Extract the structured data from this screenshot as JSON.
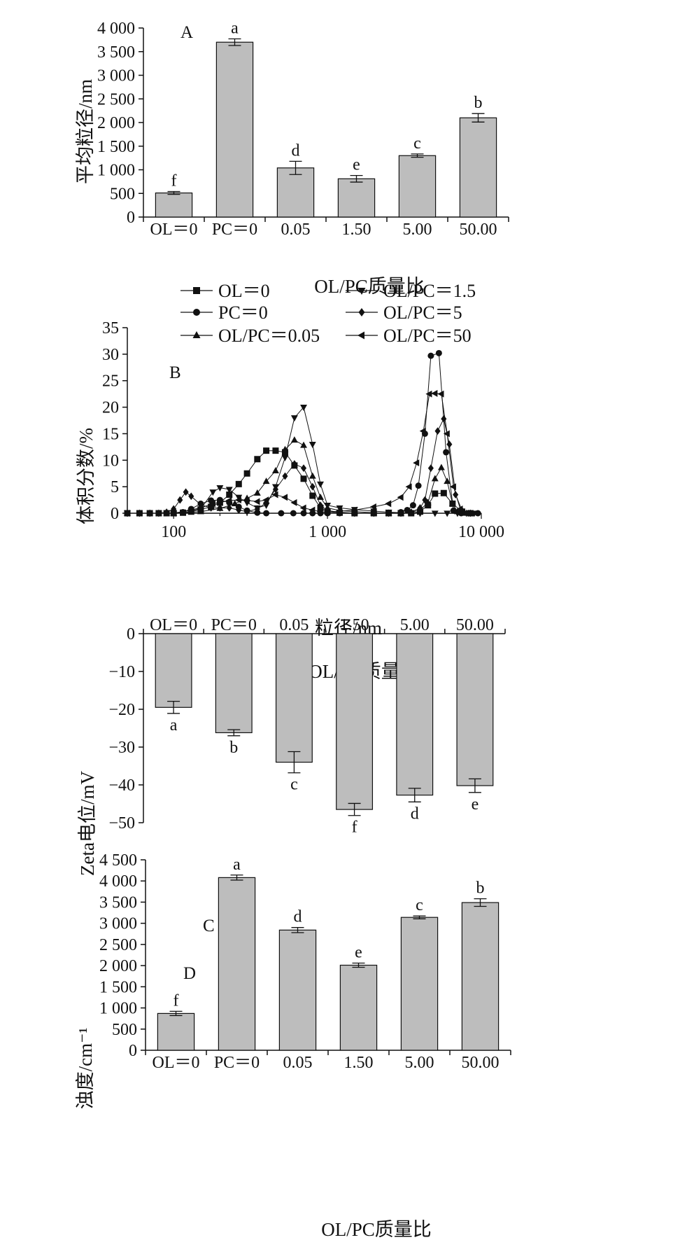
{
  "colors": {
    "bar": "#bdbdbd",
    "axis": "#111111"
  },
  "chart_data": [
    {
      "panel": "A",
      "type": "bar",
      "categories": [
        "OL＝0",
        "PC＝0",
        "0.05",
        "1.50",
        "5.00",
        "50.00"
      ],
      "values": [
        510,
        3700,
        1040,
        810,
        1300,
        2100
      ],
      "errors": [
        30,
        70,
        140,
        70,
        35,
        90
      ],
      "letters": [
        "f",
        "a",
        "d",
        "e",
        "c",
        "b"
      ],
      "xlabel": "OL/PC质量比",
      "ylabel": "平均粒径/nm",
      "ylim": [
        0,
        4000
      ],
      "yticks": [
        0,
        500,
        1000,
        1500,
        2000,
        2500,
        3000,
        3500,
        4000
      ],
      "yticklabels": [
        "0",
        "500",
        "1 000",
        "1 500",
        "2 000",
        "2 500",
        "3 000",
        "3 500",
        "4 000"
      ]
    },
    {
      "panel": "B",
      "type": "line",
      "xscale": "log",
      "xlim": [
        50,
        10000
      ],
      "ylim": [
        0,
        35
      ],
      "xticks": [
        100,
        1000,
        10000
      ],
      "xticklabels": [
        "100",
        "1 000",
        "10 000"
      ],
      "yticks": [
        0,
        5,
        10,
        15,
        20,
        25,
        30,
        35
      ],
      "yticklabels": [
        "0",
        "5",
        "10",
        "15",
        "20",
        "25",
        "30",
        "35"
      ],
      "xlabel": "粒径/nm",
      "ylabel": "体积分数/%",
      "legend_position": "top",
      "series": [
        {
          "name": "OL＝0",
          "marker": "square",
          "x": [
            50,
            60,
            70,
            80,
            90,
            100,
            115,
            130,
            150,
            175,
            200,
            230,
            265,
            300,
            350,
            400,
            460,
            530,
            610,
            700,
            800,
            900,
            1000,
            1200,
            1500,
            2000,
            2500,
            3000,
            3500,
            4000,
            4500,
            5000,
            5700,
            6500,
            7500,
            8500
          ],
          "y": [
            0,
            0,
            0,
            0,
            0,
            0,
            0.1,
            0.3,
            0.7,
            1.2,
            2.0,
            3.5,
            5.5,
            7.5,
            10.2,
            11.8,
            11.8,
            11.5,
            9.0,
            6.5,
            3.3,
            1.0,
            0.3,
            0.1,
            0,
            0,
            0,
            0,
            0,
            0.3,
            1.5,
            3.7,
            3.8,
            1.8,
            0.3,
            0
          ]
        },
        {
          "name": "PC＝0",
          "marker": "circle",
          "x": [
            50,
            60,
            70,
            80,
            90,
            100,
            115,
            130,
            150,
            175,
            200,
            230,
            265,
            300,
            350,
            400,
            500,
            600,
            700,
            800,
            900,
            1000,
            1200,
            1500,
            2000,
            2500,
            3000,
            3300,
            3600,
            3900,
            4300,
            4700,
            5300,
            5900,
            6600,
            7400,
            8500,
            9500
          ],
          "y": [
            0,
            0,
            0,
            0,
            0,
            0,
            0.2,
            0.8,
            1.8,
            2.4,
            2.5,
            2.0,
            1.2,
            0.5,
            0.1,
            0,
            0,
            0,
            0,
            0,
            0,
            0,
            0,
            0,
            0,
            0,
            0.2,
            0.6,
            1.5,
            5.2,
            15.0,
            29.7,
            30.2,
            11.5,
            0.5,
            0,
            0,
            0
          ]
        },
        {
          "name": "OL/PC＝0.05",
          "marker": "triangle-up",
          "x": [
            50,
            100,
            150,
            200,
            250,
            300,
            350,
            400,
            460,
            530,
            610,
            700,
            800,
            900,
            1000,
            1200,
            1500,
            2000,
            2500,
            3000,
            3500,
            4000,
            4500,
            5000,
            5500,
            6000,
            6500,
            7000,
            8000
          ],
          "y": [
            0,
            0,
            0.3,
            0.9,
            1.8,
            2.8,
            3.8,
            6.0,
            8.0,
            12.0,
            13.8,
            12.8,
            7.0,
            3.0,
            1.0,
            0.5,
            0.3,
            0.1,
            0,
            0,
            0.2,
            0.6,
            2.0,
            6.5,
            8.6,
            6.0,
            1.8,
            0.3,
            0
          ]
        },
        {
          "name": "OL/PC＝1.5",
          "marker": "triangle-down",
          "x": [
            50,
            100,
            150,
            180,
            200,
            230,
            265,
            300,
            350,
            400,
            460,
            530,
            610,
            700,
            800,
            900,
            1000,
            1200,
            1500,
            2000,
            2500,
            3000,
            4000,
            5000,
            6000,
            7000,
            8000,
            9000
          ],
          "y": [
            0,
            0,
            0.8,
            4.0,
            4.8,
            4.5,
            3.0,
            2.0,
            1.0,
            1.5,
            5.0,
            10.5,
            18.0,
            20.0,
            13.0,
            5.5,
            1.5,
            1.0,
            0.7,
            0.4,
            0.2,
            0.1,
            0,
            0,
            0,
            0,
            0,
            0
          ]
        },
        {
          "name": "OL/PC＝5",
          "marker": "diamond",
          "x": [
            50,
            60,
            70,
            80,
            90,
            100,
            110,
            120,
            130,
            150,
            175,
            200,
            230,
            265,
            300,
            350,
            400,
            460,
            530,
            610,
            700,
            800,
            900,
            1000,
            1200,
            1500,
            2000,
            2500,
            3000,
            3500,
            4000,
            4300,
            4700,
            5200,
            5700,
            6200,
            6800,
            7500,
            8500
          ],
          "y": [
            0,
            0,
            0,
            0,
            0.2,
            0.8,
            2.5,
            4.0,
            3.2,
            1.6,
            1.0,
            1.0,
            1.0,
            0.6,
            0.3,
            0.8,
            2.0,
            4.5,
            7.0,
            9.3,
            8.5,
            5.0,
            1.5,
            0.5,
            0.2,
            0,
            0,
            0,
            0,
            0.2,
            1.0,
            2.5,
            8.5,
            15.5,
            17.8,
            13.0,
            3.5,
            0.5,
            0
          ]
        },
        {
          "name": "OL/PC＝50",
          "marker": "triangle-left",
          "x": [
            50,
            100,
            150,
            180,
            200,
            230,
            265,
            300,
            350,
            400,
            460,
            530,
            610,
            700,
            800,
            900,
            1000,
            1200,
            1500,
            2000,
            2500,
            3000,
            3400,
            3800,
            4200,
            4600,
            5000,
            5500,
            6000,
            6600,
            7300,
            8000
          ],
          "y": [
            0,
            0,
            1.0,
            1.8,
            2.0,
            2.4,
            2.5,
            2.4,
            2.2,
            2.5,
            3.5,
            3.0,
            2.0,
            1.0,
            0.6,
            0.3,
            0.2,
            0.4,
            0.6,
            1.2,
            1.8,
            3.0,
            5.0,
            9.5,
            15.5,
            22.5,
            22.6,
            22.5,
            15.0,
            5.0,
            0.8,
            0
          ]
        }
      ]
    },
    {
      "panel": "C",
      "type": "bar",
      "categories": [
        "OL＝0",
        "PC＝0",
        "0.05",
        "1.50",
        "5.00",
        "50.00"
      ],
      "values": [
        -19.5,
        -26.2,
        -34.0,
        -46.5,
        -42.7,
        -40.2
      ],
      "errors": [
        1.6,
        0.8,
        2.8,
        1.6,
        1.8,
        1.8
      ],
      "letters": [
        "a",
        "b",
        "c",
        "f",
        "d",
        "e"
      ],
      "xlabel": "OL/PC质量比",
      "ylabel": "Zeta电位/mV",
      "ylim": [
        -50,
        0
      ],
      "yticks": [
        0,
        -10,
        -20,
        -30,
        -40,
        -50
      ],
      "yticklabels": [
        "0",
        "−10",
        "−20",
        "−30",
        "−40",
        "−50"
      ],
      "xaxis_position": "top"
    },
    {
      "panel": "D",
      "type": "bar",
      "categories": [
        "OL＝0",
        "PC＝0",
        "0.05",
        "1.50",
        "5.00",
        "50.00"
      ],
      "values": [
        870,
        4080,
        2840,
        2010,
        3140,
        3490
      ],
      "errors": [
        50,
        60,
        60,
        50,
        35,
        90
      ],
      "letters": [
        "f",
        "a",
        "d",
        "e",
        "c",
        "b"
      ],
      "xlabel": "OL/PC质量比",
      "ylabel": "浊度/cm⁻¹",
      "ylim": [
        0,
        4500
      ],
      "yticks": [
        0,
        500,
        1000,
        1500,
        2000,
        2500,
        3000,
        3500,
        4000,
        4500
      ],
      "yticklabels": [
        "0",
        "500",
        "1 000",
        "1 500",
        "2 000",
        "2 500",
        "3 000",
        "3 500",
        "4 000",
        "4 500"
      ]
    }
  ]
}
